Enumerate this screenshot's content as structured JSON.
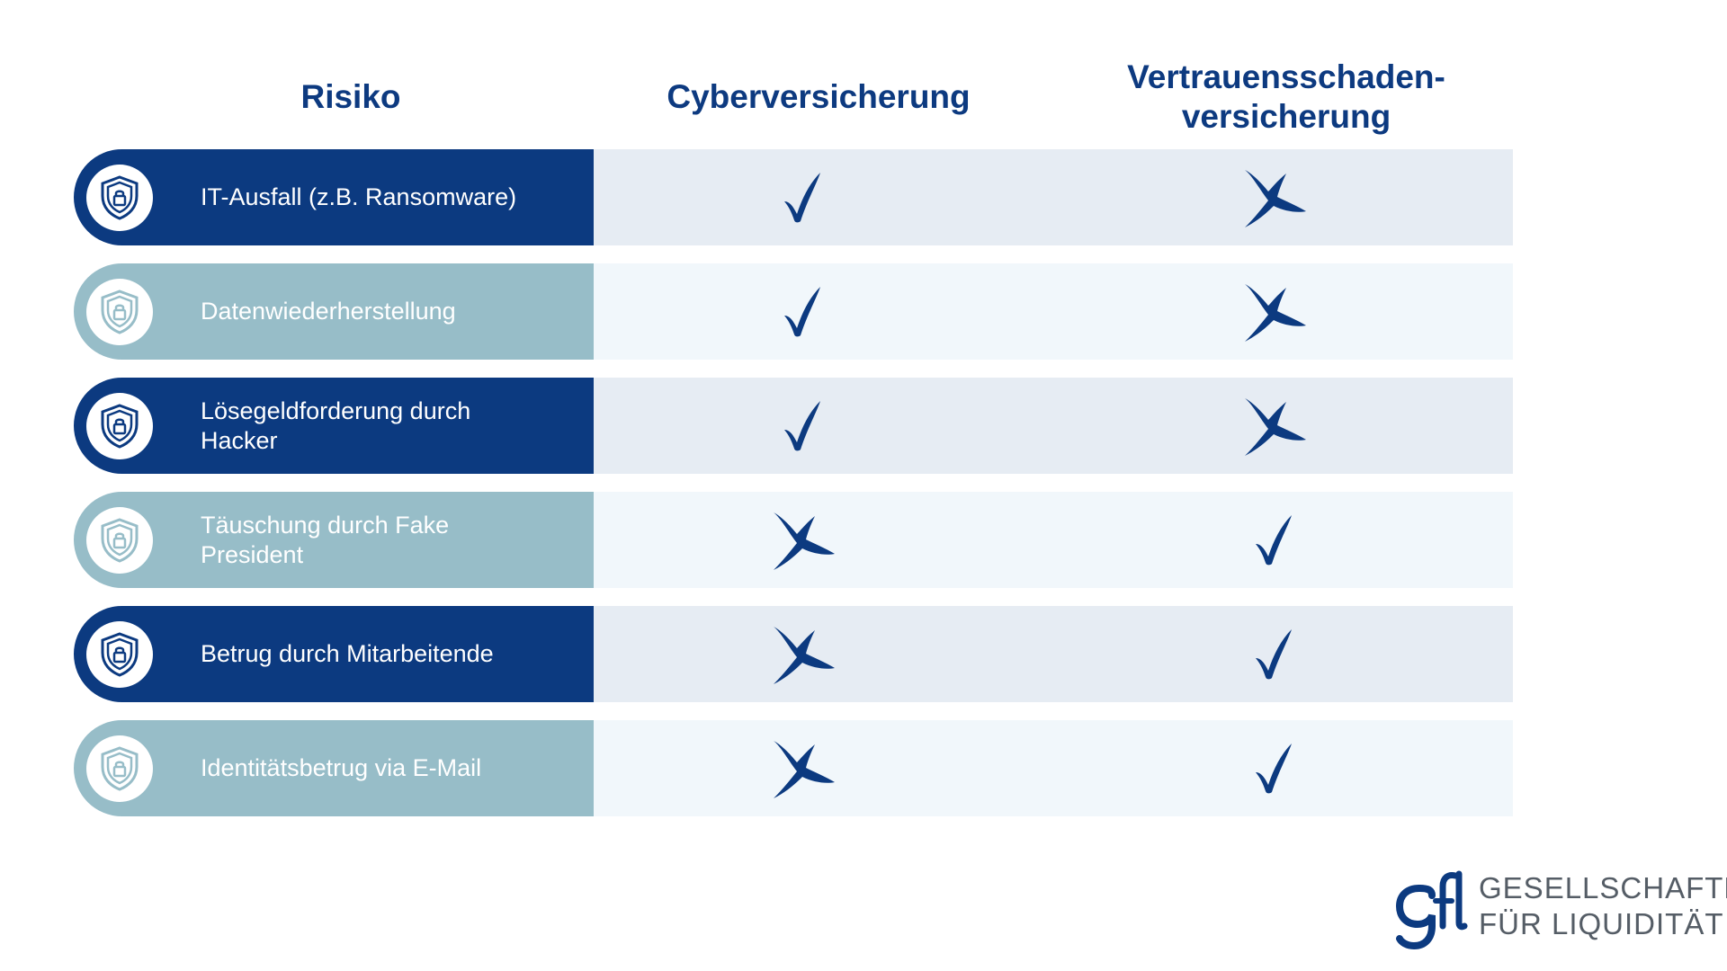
{
  "header": {
    "risk": "Risiko",
    "cyber": "Cyberversicherung",
    "vertrauen_line1": "Vertrauensschaden-",
    "vertrauen_line2": "versicherung"
  },
  "rows": [
    {
      "label": "IT-Ausfall (z.B. Ransomware)",
      "cyber": "check",
      "vertrauen": "cross"
    },
    {
      "label": "Datenwiederherstellung",
      "cyber": "check",
      "vertrauen": "cross"
    },
    {
      "label": "Lösegeldforderung durch\nHacker",
      "cyber": "check",
      "vertrauen": "cross"
    },
    {
      "label": "Täuschung durch Fake\nPresident",
      "cyber": "cross",
      "vertrauen": "check"
    },
    {
      "label": "Betrug durch Mitarbeitende",
      "cyber": "cross",
      "vertrauen": "check"
    },
    {
      "label": "Identitätsbetrug via E-Mail",
      "cyber": "cross",
      "vertrauen": "check"
    }
  ],
  "row_icon": "shield-lock-icon",
  "colors": {
    "dark_blue": "#0c3a80",
    "light_teal": "#97bdc8",
    "mark_blue": "#0c3a80",
    "logo_gray": "#555d66"
  },
  "logo": {
    "mark": "gfl",
    "line1": "GESELLSCHAFTEN",
    "line2": "FÜR LIQUIDITÄT"
  }
}
